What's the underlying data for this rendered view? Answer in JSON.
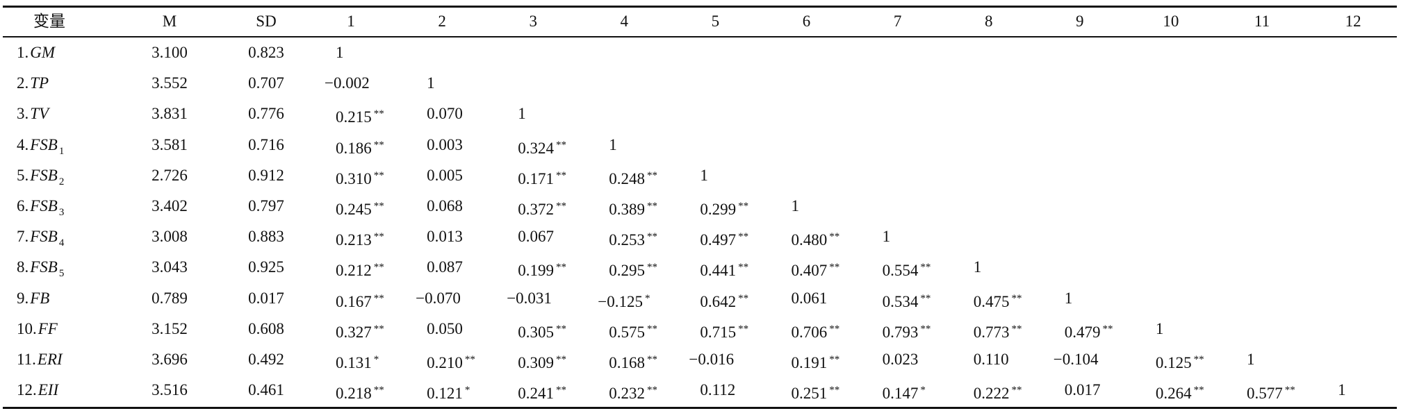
{
  "table": {
    "header": [
      "变量",
      "M",
      "SD",
      "1",
      "2",
      "3",
      "4",
      "5",
      "6",
      "7",
      "8",
      "9",
      "10",
      "11",
      "12"
    ],
    "rows": [
      {
        "label": [
          "1.",
          "GM"
        ],
        "cells": [
          [
            "3.100"
          ],
          [
            "0.823"
          ],
          [
            "1"
          ]
        ]
      },
      {
        "label": [
          "2.",
          "TP"
        ],
        "cells": [
          [
            "3.552"
          ],
          [
            "0.707"
          ],
          [
            "−0.002"
          ],
          [
            "1"
          ]
        ]
      },
      {
        "label": [
          "3.",
          "TV"
        ],
        "cells": [
          [
            "3.831"
          ],
          [
            "0.776"
          ],
          [
            "0.215",
            "**"
          ],
          [
            "0.070"
          ],
          [
            "1"
          ]
        ]
      },
      {
        "label": [
          "4.",
          "FSB",
          "1"
        ],
        "cells": [
          [
            "3.581"
          ],
          [
            "0.716"
          ],
          [
            "0.186",
            "**"
          ],
          [
            "0.003"
          ],
          [
            "0.324",
            "**"
          ],
          [
            "1"
          ]
        ]
      },
      {
        "label": [
          "5.",
          "FSB",
          "2"
        ],
        "cells": [
          [
            "2.726"
          ],
          [
            "0.912"
          ],
          [
            "0.310",
            "**"
          ],
          [
            "0.005"
          ],
          [
            "0.171",
            "**"
          ],
          [
            "0.248",
            "**"
          ],
          [
            "1"
          ]
        ]
      },
      {
        "label": [
          "6.",
          "FSB",
          "3"
        ],
        "cells": [
          [
            "3.402"
          ],
          [
            "0.797"
          ],
          [
            "0.245",
            "**"
          ],
          [
            "0.068"
          ],
          [
            "0.372",
            "**"
          ],
          [
            "0.389",
            "**"
          ],
          [
            "0.299",
            "**"
          ],
          [
            "1"
          ]
        ]
      },
      {
        "label": [
          "7.",
          "FSB",
          "4"
        ],
        "cells": [
          [
            "3.008"
          ],
          [
            "0.883"
          ],
          [
            "0.213",
            "**"
          ],
          [
            "0.013"
          ],
          [
            "0.067"
          ],
          [
            "0.253",
            "**"
          ],
          [
            "0.497",
            "**"
          ],
          [
            "0.480",
            "**"
          ],
          [
            "1"
          ]
        ]
      },
      {
        "label": [
          "8.",
          "FSB",
          "5"
        ],
        "cells": [
          [
            "3.043"
          ],
          [
            "0.925"
          ],
          [
            "0.212",
            "**"
          ],
          [
            "0.087"
          ],
          [
            "0.199",
            "**"
          ],
          [
            "0.295",
            "**"
          ],
          [
            "0.441",
            "**"
          ],
          [
            "0.407",
            "**"
          ],
          [
            "0.554",
            "**"
          ],
          [
            "1"
          ]
        ]
      },
      {
        "label": [
          "9.",
          "FB"
        ],
        "cells": [
          [
            "0.789"
          ],
          [
            "0.017"
          ],
          [
            "0.167",
            "**"
          ],
          [
            "−0.070"
          ],
          [
            "−0.031"
          ],
          [
            "−0.125",
            "*"
          ],
          [
            "0.642",
            "**"
          ],
          [
            "0.061"
          ],
          [
            "0.534",
            "**"
          ],
          [
            "0.475",
            "**"
          ],
          [
            "1"
          ]
        ]
      },
      {
        "label": [
          "10.",
          "FF"
        ],
        "cells": [
          [
            "3.152"
          ],
          [
            "0.608"
          ],
          [
            "0.327",
            "**"
          ],
          [
            "0.050"
          ],
          [
            "0.305",
            "**"
          ],
          [
            "0.575",
            "**"
          ],
          [
            "0.715",
            "**"
          ],
          [
            "0.706",
            "**"
          ],
          [
            "0.793",
            "**"
          ],
          [
            "0.773",
            "**"
          ],
          [
            "0.479",
            "**"
          ],
          [
            "1"
          ]
        ]
      },
      {
        "label": [
          "11.",
          "ERI"
        ],
        "cells": [
          [
            "3.696"
          ],
          [
            "0.492"
          ],
          [
            "0.131",
            "*"
          ],
          [
            "0.210",
            "**"
          ],
          [
            "0.309",
            "**"
          ],
          [
            "0.168",
            "**"
          ],
          [
            "−0.016"
          ],
          [
            "0.191",
            "**"
          ],
          [
            "0.023"
          ],
          [
            "0.110"
          ],
          [
            "−0.104"
          ],
          [
            "0.125",
            "**"
          ],
          [
            "1"
          ]
        ]
      },
      {
        "label": [
          "12.",
          "EII"
        ],
        "cells": [
          [
            "3.516"
          ],
          [
            "0.461"
          ],
          [
            "0.218",
            "**"
          ],
          [
            "0.121",
            "*"
          ],
          [
            "0.241",
            "**"
          ],
          [
            "0.232",
            "**"
          ],
          [
            "0.112"
          ],
          [
            "0.251",
            "**"
          ],
          [
            "0.147",
            "*"
          ],
          [
            "0.222",
            "**"
          ],
          [
            "0.017"
          ],
          [
            "0.264",
            "**"
          ],
          [
            "0.577",
            "**"
          ],
          [
            "1"
          ]
        ]
      }
    ]
  }
}
